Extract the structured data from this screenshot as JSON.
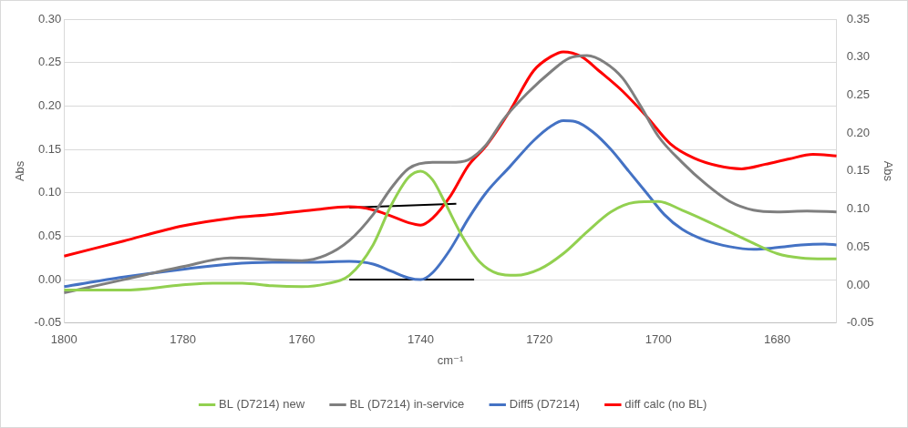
{
  "chart_data": {
    "type": "line",
    "x_label": "cm⁻¹",
    "y_label": "Abs",
    "y2_label": "Abs",
    "xlim": [
      1800,
      1670
    ],
    "xticks": [
      1800,
      1780,
      1760,
      1740,
      1720,
      1700,
      1680
    ],
    "ylim": [
      -0.05,
      0.3
    ],
    "yticks": [
      -0.05,
      {
        "value": 0,
        "label": "0.00"
      },
      0.05,
      {
        "value": 0.1,
        "label": "0.10"
      },
      0.15,
      {
        "value": 0.2,
        "label": "0.20"
      },
      0.25,
      {
        "value": 0.3,
        "label": "0.30"
      }
    ],
    "y2lim": [
      -0.05,
      0.35
    ],
    "y2ticks": [
      -0.05,
      {
        "value": 0,
        "label": "0.00"
      },
      0.05,
      {
        "value": 0.1,
        "label": "0.10"
      },
      0.15,
      {
        "value": 0.2,
        "label": "0.20"
      },
      0.25,
      {
        "value": 0.3,
        "label": "0.30"
      },
      0.35
    ],
    "grid": true,
    "legend": "bottom",
    "series": [
      {
        "name": "BL (D7214) new",
        "color": "#92d050",
        "x": [
          1800,
          1790,
          1780,
          1775,
          1770,
          1765,
          1760,
          1756,
          1752,
          1748,
          1745,
          1742,
          1740,
          1738,
          1736,
          1733,
          1730,
          1727,
          1724,
          1720,
          1716,
          1712,
          1708,
          1704,
          1700,
          1696,
          1692,
          1688,
          1684,
          1680,
          1676,
          1672,
          1670
        ],
        "values": [
          -0.012,
          -0.012,
          -0.006,
          -0.004,
          -0.004,
          -0.007,
          -0.008,
          -0.005,
          0.005,
          0.04,
          0.085,
          0.118,
          0.125,
          0.115,
          0.09,
          0.05,
          0.02,
          0.007,
          0.005,
          0.012,
          0.03,
          0.055,
          0.078,
          0.089,
          0.09,
          0.08,
          0.068,
          0.055,
          0.042,
          0.03,
          0.025,
          0.024,
          0.024
        ]
      },
      {
        "name": "BL (D7214) in-service",
        "color": "#7f7f7f",
        "x": [
          1800,
          1790,
          1780,
          1772,
          1765,
          1760,
          1756,
          1752,
          1748,
          1745,
          1742,
          1738,
          1735,
          1732,
          1729,
          1726,
          1722,
          1718,
          1715,
          1712,
          1709,
          1706,
          1703,
          1700,
          1696,
          1692,
          1688,
          1684,
          1680,
          1675,
          1670
        ],
        "values": [
          -0.015,
          0.0,
          0.015,
          0.025,
          0.023,
          0.022,
          0.028,
          0.045,
          0.075,
          0.105,
          0.128,
          0.135,
          0.135,
          0.138,
          0.155,
          0.185,
          0.215,
          0.24,
          0.255,
          0.258,
          0.25,
          0.232,
          0.2,
          0.165,
          0.135,
          0.11,
          0.09,
          0.08,
          0.078,
          0.079,
          0.078
        ]
      },
      {
        "name": "Diff5 (D7214)",
        "color": "#4472c4",
        "x": [
          1800,
          1790,
          1780,
          1772,
          1765,
          1758,
          1752,
          1748,
          1745,
          1742,
          1740,
          1738,
          1735,
          1732,
          1729,
          1725,
          1721,
          1718,
          1716,
          1714,
          1711,
          1708,
          1705,
          1702,
          1699,
          1696,
          1692,
          1688,
          1684,
          1680,
          1676,
          1672,
          1670
        ],
        "values": [
          -0.008,
          0.003,
          0.012,
          0.018,
          0.02,
          0.02,
          0.021,
          0.018,
          0.01,
          0.002,
          0.0,
          0.008,
          0.035,
          0.07,
          0.1,
          0.13,
          0.16,
          0.177,
          0.183,
          0.182,
          0.17,
          0.15,
          0.125,
          0.1,
          0.075,
          0.058,
          0.045,
          0.038,
          0.035,
          0.037,
          0.04,
          0.041,
          0.04
        ]
      },
      {
        "name": "diff calc (no BL)",
        "color": "#ff0000",
        "axis": "y2",
        "x": [
          1800,
          1790,
          1780,
          1772,
          1765,
          1758,
          1752,
          1748,
          1745,
          1742,
          1740,
          1738,
          1735,
          1732,
          1729,
          1725,
          1721,
          1718,
          1716,
          1713,
          1710,
          1706,
          1702,
          1698,
          1694,
          1690,
          1686,
          1682,
          1678,
          1674,
          1670
        ],
        "values": [
          0.038,
          0.058,
          0.078,
          0.088,
          0.093,
          0.099,
          0.103,
          0.099,
          0.091,
          0.082,
          0.079,
          0.088,
          0.117,
          0.157,
          0.183,
          0.229,
          0.282,
          0.301,
          0.307,
          0.301,
          0.282,
          0.255,
          0.222,
          0.186,
          0.167,
          0.157,
          0.153,
          0.159,
          0.166,
          0.172,
          0.17
        ]
      }
    ],
    "lines": [
      {
        "color": "#000000",
        "x": [
          1752,
          1731
        ],
        "values": [
          0,
          0
        ]
      },
      {
        "color": "#000000",
        "x": [
          1752,
          1734
        ],
        "values": [
          0.083,
          0.0875
        ]
      }
    ]
  }
}
